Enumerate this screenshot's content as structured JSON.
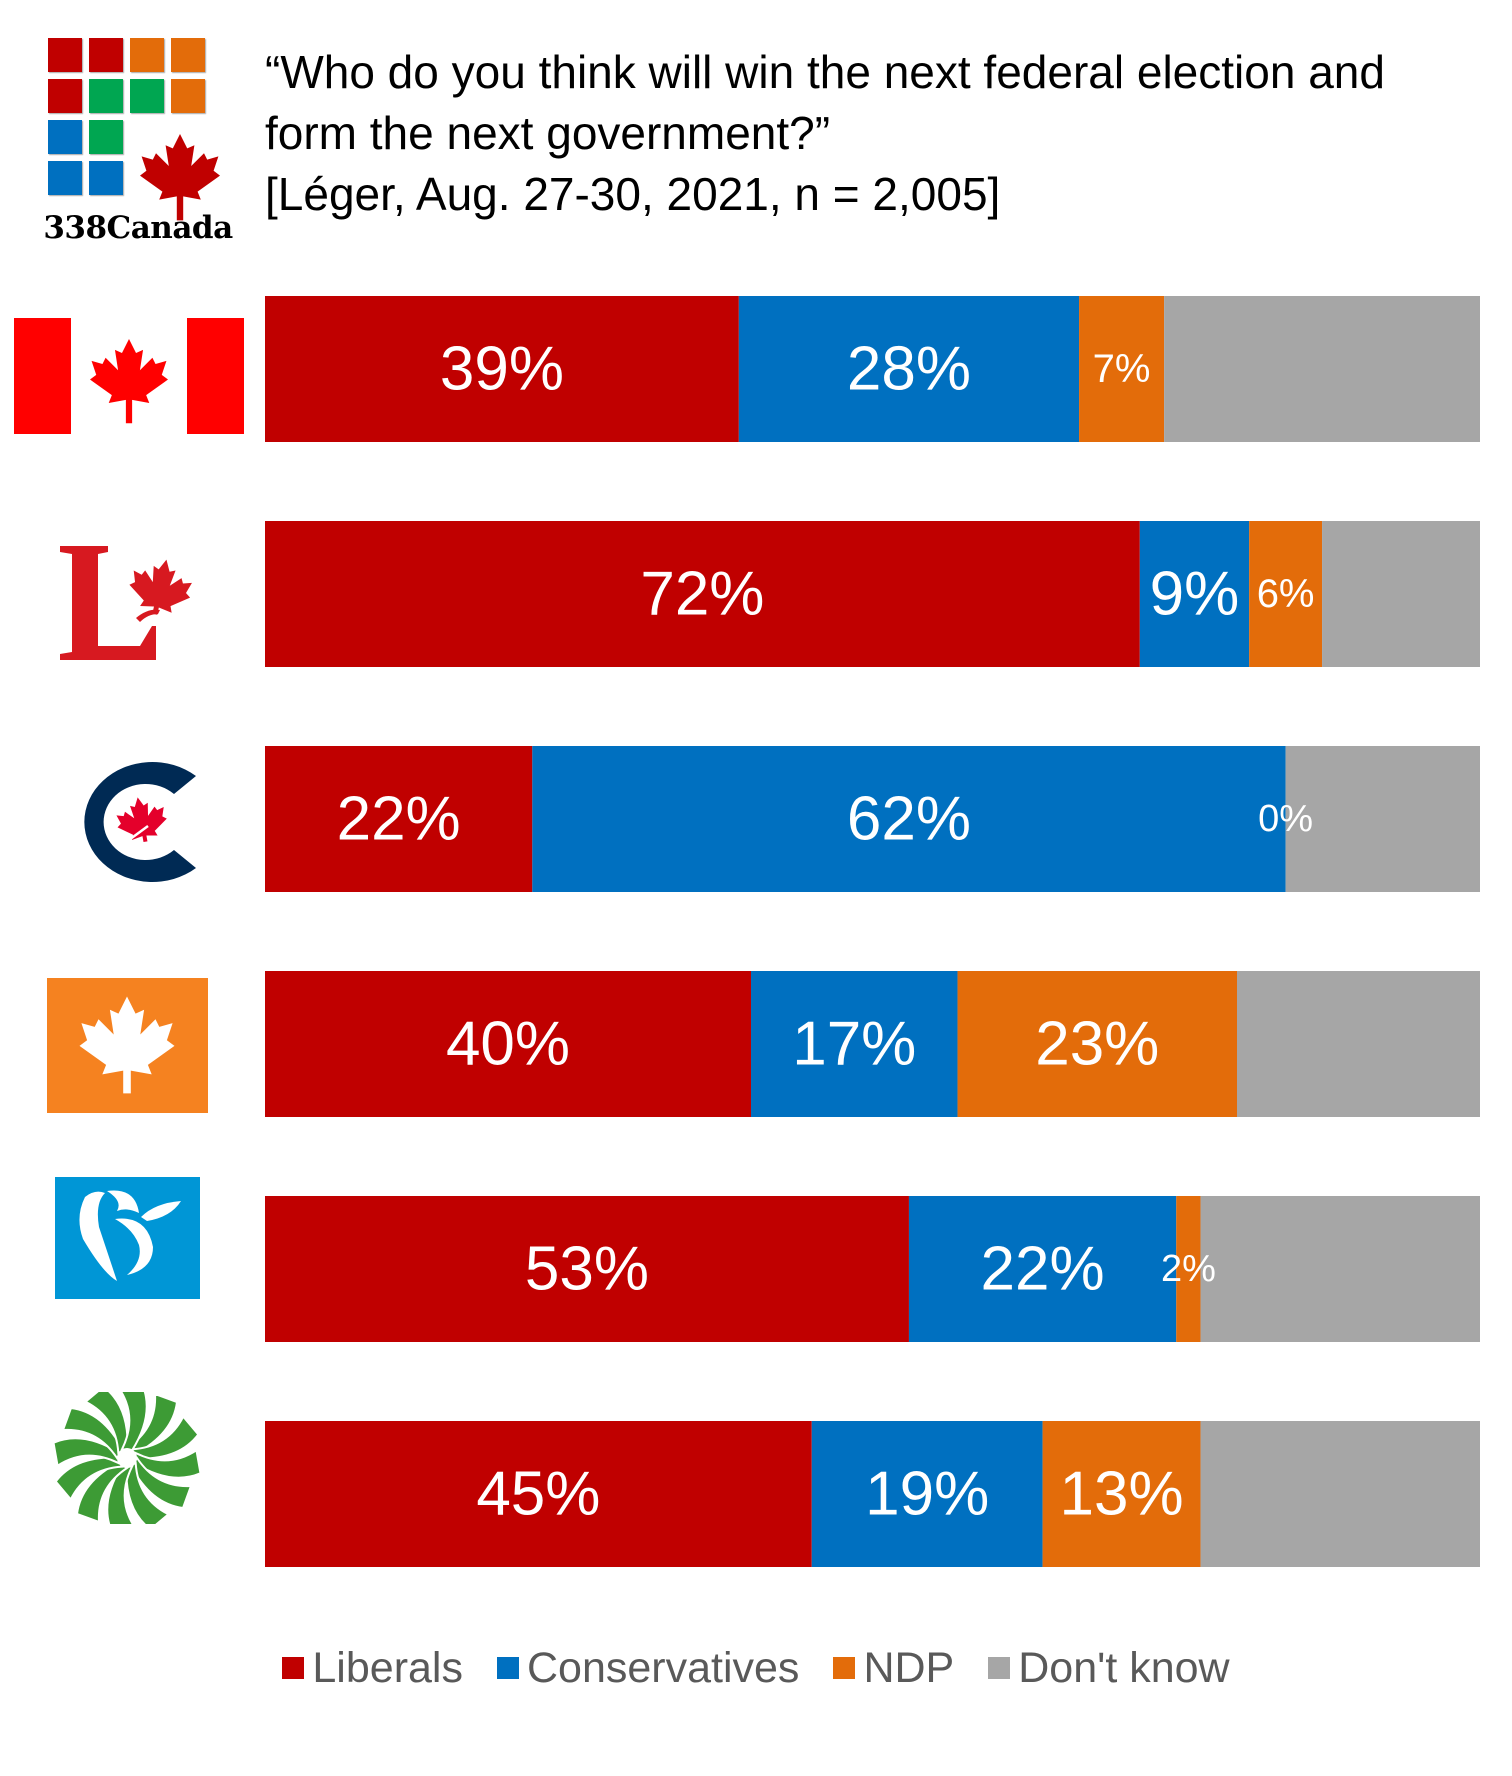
{
  "logo": {
    "name": "338Canada",
    "grid_colors": [
      [
        "#c00000",
        "#c00000",
        "#e36c0a",
        "#e36c0a"
      ],
      [
        "#c00000",
        "#00a651",
        "#00a651",
        "#e36c0a"
      ],
      [
        "#0070c0",
        "#00a651",
        null,
        null
      ],
      [
        "#0070c0",
        "#0070c0",
        null,
        null
      ]
    ],
    "leaf_color": "#c00000"
  },
  "title": {
    "lines": [
      "“Who do you think will win the next federal election and",
      "form the next government?”",
      "[Léger, Aug. 27-30, 2021, n = 2,005]"
    ]
  },
  "chart_data": {
    "type": "bar",
    "orientation": "horizontal",
    "stacked": true,
    "title": "“Who do you think will win the next federal election and form the next government?” [Léger, Aug. 27-30, 2021, n = 2,005]",
    "xlabel": "",
    "ylabel": "",
    "xlim": [
      0,
      100
    ],
    "grid": false,
    "legend_position": "bottom",
    "categories": [
      "All voters",
      "Liberal voters",
      "Conservative voters",
      "NDP voters",
      "Bloc Québécois voters",
      "Green voters"
    ],
    "category_icons": [
      "canada-flag-icon",
      "liberal-party-logo-icon",
      "conservative-party-logo-icon",
      "ndp-logo-icon",
      "bloc-quebecois-logo-icon",
      "green-party-logo-icon"
    ],
    "series": [
      {
        "name": "Liberals",
        "color": "#c00000",
        "values": [
          39,
          72,
          22,
          40,
          53,
          45
        ],
        "labels": [
          "39%",
          "72%",
          "22%",
          "40%",
          "53%",
          "45%"
        ]
      },
      {
        "name": "Conservatives",
        "color": "#0070c0",
        "values": [
          28,
          9,
          62,
          17,
          22,
          19
        ],
        "labels": [
          "28%",
          "9%",
          "62%",
          "17%",
          "22%",
          "19%"
        ]
      },
      {
        "name": "NDP",
        "color": "#e36c0a",
        "values": [
          7,
          6,
          0,
          23,
          2,
          13
        ],
        "labels": [
          "7%",
          "6%",
          "0%",
          "23%",
          "2%",
          "13%"
        ]
      },
      {
        "name": "Don't know",
        "color": "#a6a6a6",
        "values": [
          26,
          13,
          16,
          20,
          23,
          23
        ],
        "labels": [
          "",
          "",
          "",
          "",
          "",
          ""
        ]
      }
    ]
  },
  "legend": {
    "items": [
      {
        "label": "Liberals",
        "color": "#c00000"
      },
      {
        "label": "Conservatives",
        "color": "#0070c0"
      },
      {
        "label": "NDP",
        "color": "#e36c0a"
      },
      {
        "label": "Don't know",
        "color": "#a6a6a6"
      }
    ]
  }
}
